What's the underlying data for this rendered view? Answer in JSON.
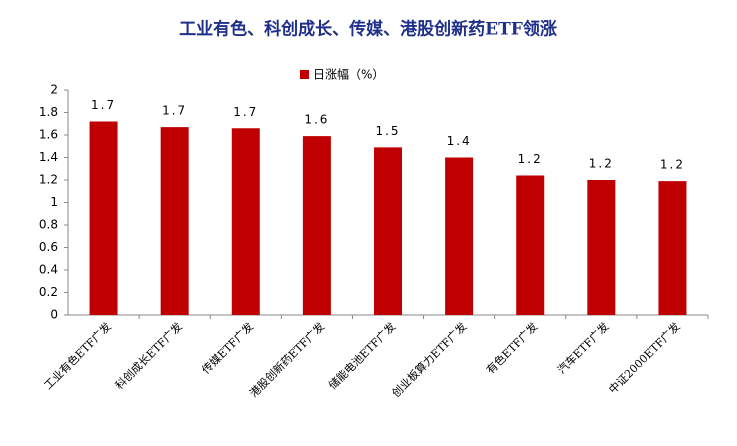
{
  "chart_data": {
    "type": "bar",
    "title": "工业有色、科创成长、传媒、港股创新药ETF领涨",
    "categories": [
      "工业有色ETF广发",
      "科创成长ETF广发",
      "传媒ETF广发",
      "港股创新药ETF广发",
      "储能电池ETF广发",
      "创业板算力ETF广发",
      "有色ETF广发",
      "汽车ETF广发",
      "中证2000ETF广发"
    ],
    "series": [
      {
        "name": "日涨幅（%）",
        "color": "#c00000",
        "values": [
          1.72,
          1.67,
          1.66,
          1.59,
          1.49,
          1.4,
          1.24,
          1.2,
          1.19
        ],
        "value_labels": [
          "1.7",
          "1.7",
          "1.7",
          "1.6",
          "1.5",
          "1.4",
          "1.2",
          "1.2",
          "1.2"
        ]
      }
    ],
    "ylim": [
      0,
      2
    ],
    "yticks": [
      0,
      0.2,
      0.4,
      0.6,
      0.8,
      1,
      1.2,
      1.4,
      1.6,
      1.8,
      2
    ],
    "grid": false,
    "legend": "top"
  }
}
